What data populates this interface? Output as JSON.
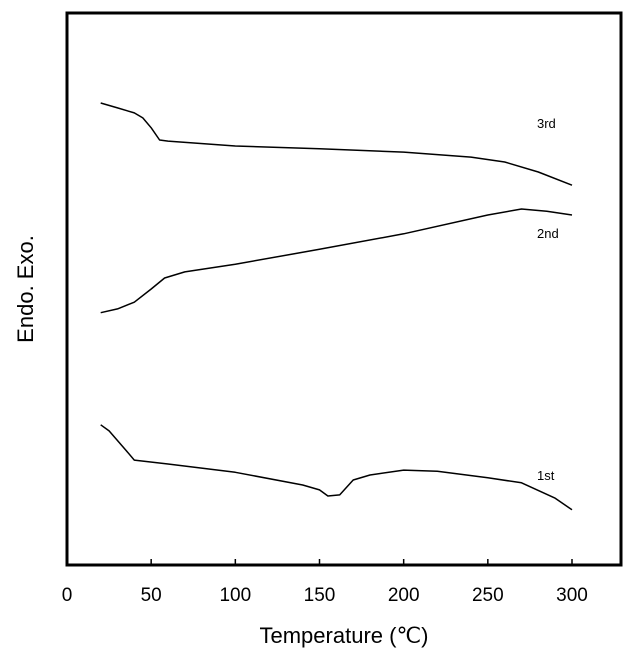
{
  "chart_data": {
    "type": "line",
    "title": "",
    "xlabel": "Temperature (℃)",
    "ylabel": "Endo. Exo.",
    "xlim": [
      0,
      320
    ],
    "ylim": [
      0,
      100
    ],
    "y_units": "arbitrary (heat flow, offset curves)",
    "xticks": [
      "0",
      "50",
      "100",
      "150",
      "200",
      "250",
      "300"
    ],
    "xtick_values": [
      0,
      50,
      100,
      150,
      200,
      250,
      300
    ],
    "grid": false,
    "series": [
      {
        "name": "3rd",
        "x": [
          20,
          30,
          40,
          45,
          50,
          55,
          60,
          100,
          150,
          200,
          240,
          260,
          280,
          300
        ],
        "y": [
          83.7,
          82.8,
          81.9,
          81.0,
          79.2,
          77.0,
          76.8,
          75.9,
          75.4,
          74.8,
          73.9,
          73.0,
          71.2,
          68.8
        ]
      },
      {
        "name": "2nd",
        "x": [
          20,
          30,
          40,
          50,
          58,
          70,
          100,
          150,
          200,
          250,
          270,
          285,
          300
        ],
        "y": [
          45.7,
          46.4,
          47.6,
          50.0,
          52.0,
          53.1,
          54.5,
          57.2,
          60.0,
          63.4,
          64.5,
          64.1,
          63.4
        ]
      },
      {
        "name": "1st",
        "x": [
          20,
          25,
          35,
          40,
          60,
          100,
          140,
          150,
          155,
          162,
          170,
          180,
          200,
          220,
          250,
          270,
          290,
          300
        ],
        "y": [
          25.4,
          24.3,
          20.8,
          19.0,
          18.3,
          16.8,
          14.5,
          13.6,
          12.5,
          12.7,
          15.4,
          16.3,
          17.2,
          17.0,
          15.8,
          14.9,
          12.1,
          10.0
        ]
      }
    ]
  }
}
